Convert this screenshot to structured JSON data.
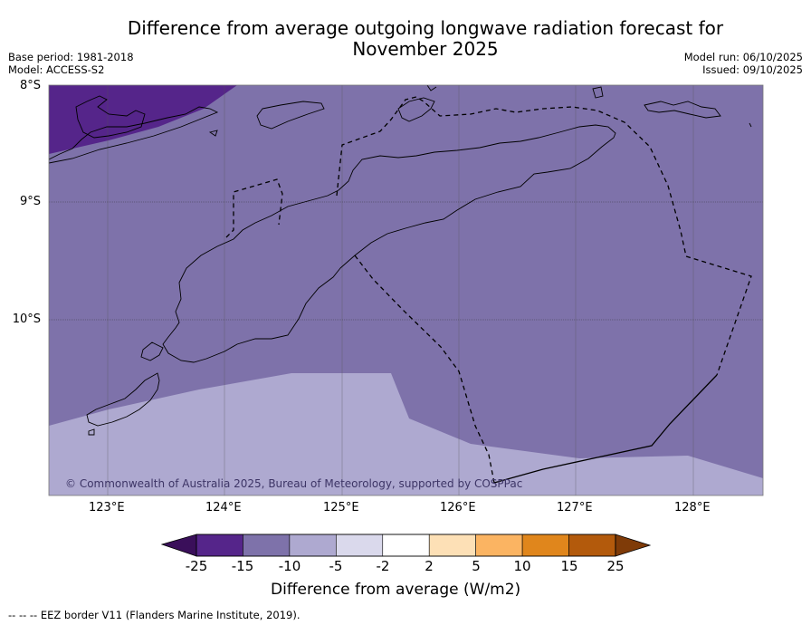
{
  "header": {
    "title_line1": "Difference from average outgoing longwave radiation forecast for",
    "title_line2": "November 2025",
    "base_period": "Base period: 1981-2018",
    "model": "Model: ACCESS-S2",
    "model_run": "Model run: 06/10/2025",
    "issued": "Issued: 09/10/2025"
  },
  "map": {
    "lat_labels": [
      "8°S",
      "9°S",
      "10°S"
    ],
    "lon_labels": [
      "123°E",
      "124°E",
      "125°E",
      "126°E",
      "127°E",
      "128°E"
    ],
    "copyright": "© Commonwealth of Australia 2025, Bureau of Meteorology, supported by COSPPac",
    "region_categories": [
      "-25 to -15",
      "-15 to -10",
      "-10 to -5"
    ]
  },
  "colorbar": {
    "title": "Difference from average (W/m2)",
    "tick_labels": [
      "-25",
      "-15",
      "-10",
      "-5",
      "-2",
      "2",
      "5",
      "10",
      "15",
      "25"
    ],
    "colors": {
      "below_min": "#3a0f5a",
      "bins": [
        "#55258a",
        "#7e72aa",
        "#aea9d0",
        "#dad9ec",
        "#ffffff",
        "#fde0b6",
        "#fbb462",
        "#e0861c",
        "#b35a0c"
      ],
      "above_max": "#7f3b08"
    }
  },
  "footer": {
    "legend": "--  --  -- EEZ border V11 (Flanders Marine Institute, 2019)."
  }
}
